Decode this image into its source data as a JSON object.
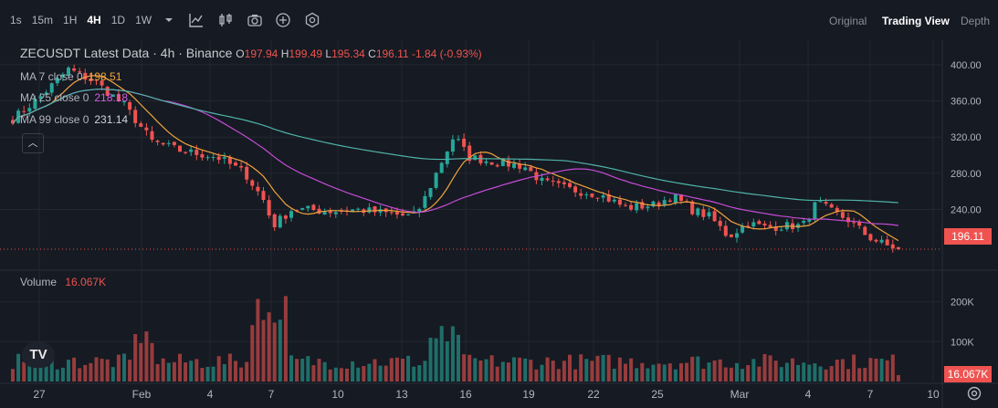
{
  "toolbar": {
    "timeframes": [
      "1s",
      "15m",
      "1H",
      "4H",
      "1D",
      "1W"
    ],
    "active_timeframe": "4H",
    "icons": [
      "chevron-down-icon",
      "indicators-icon",
      "candle-type-icon",
      "camera-icon",
      "add-icon",
      "settings-icon"
    ],
    "views": [
      "Original",
      "Trading View",
      "Depth"
    ],
    "active_view": "Trading View"
  },
  "legend": {
    "title": "ZECUSDT Latest Data · 4h · Binance",
    "open_label": "O",
    "open": "197.94",
    "high_label": "H",
    "high": "199.49",
    "low_label": "L",
    "low": "195.34",
    "close_label": "C",
    "close": "196.11",
    "change": "-1.84 (-0.93%)",
    "ma7_label": "MA 7 close 0",
    "ma7_value": "198.51",
    "ma25_label": "MA 25 close 0",
    "ma25_value": "218.18",
    "ma99_label": "MA 99 close 0",
    "ma99_value": "231.14",
    "volume_label": "Volume",
    "volume_value": "16.067K"
  },
  "price_tag": "196.11",
  "volume_tag": "16.067K",
  "logo": "TV",
  "colors": {
    "up": "#26a69a",
    "down": "#ef5350",
    "ma7": "#f0a33e",
    "ma25": "#c54bd6",
    "ma99": "#4fb3a9",
    "background": "#161a22",
    "grid": "#232731"
  },
  "chart_data": {
    "type": "candlestick",
    "symbol": "ZECUSDT",
    "interval": "4h",
    "exchange": "Binance",
    "x_ticks": [
      "27",
      "Feb",
      "4",
      "7",
      "10",
      "13",
      "16",
      "19",
      "22",
      "25",
      "Mar",
      "4",
      "7",
      "10"
    ],
    "price_ticks": [
      "400.00",
      "360.00",
      "320.00",
      "280.00",
      "240.00"
    ],
    "volume_ticks": [
      "200K",
      "100K"
    ],
    "price_range": [
      177,
      415
    ],
    "volume_range": [
      0,
      270000
    ],
    "close_path": [
      {
        "t": 0,
        "p": 340
      },
      {
        "t": 3,
        "p": 365
      },
      {
        "t": 6,
        "p": 395
      },
      {
        "t": 9,
        "p": 380
      },
      {
        "t": 12,
        "p": 355
      },
      {
        "t": 15,
        "p": 315
      },
      {
        "t": 18,
        "p": 305
      },
      {
        "t": 22,
        "p": 298
      },
      {
        "t": 25,
        "p": 280
      },
      {
        "t": 27,
        "p": 250
      },
      {
        "t": 28,
        "p": 222
      },
      {
        "t": 30,
        "p": 240
      },
      {
        "t": 31.5,
        "p": 240
      },
      {
        "t": 34,
        "p": 238
      },
      {
        "t": 37,
        "p": 240
      },
      {
        "t": 40,
        "p": 236
      },
      {
        "t": 43,
        "p": 232
      },
      {
        "t": 44,
        "p": 245
      },
      {
        "t": 46,
        "p": 290
      },
      {
        "t": 47.5,
        "p": 322
      },
      {
        "t": 49,
        "p": 298
      },
      {
        "t": 52,
        "p": 292
      },
      {
        "t": 55,
        "p": 288
      },
      {
        "t": 57,
        "p": 270
      },
      {
        "t": 60,
        "p": 262
      },
      {
        "t": 63,
        "p": 257
      },
      {
        "t": 66,
        "p": 242
      },
      {
        "t": 69,
        "p": 245
      },
      {
        "t": 71,
        "p": 255
      },
      {
        "t": 73,
        "p": 240
      },
      {
        "t": 75,
        "p": 232
      },
      {
        "t": 77,
        "p": 210
      },
      {
        "t": 79,
        "p": 225
      },
      {
        "t": 81,
        "p": 220
      },
      {
        "t": 83,
        "p": 222
      },
      {
        "t": 85,
        "p": 222
      },
      {
        "t": 86.5,
        "p": 248
      },
      {
        "t": 88,
        "p": 238
      },
      {
        "t": 90,
        "p": 228
      },
      {
        "t": 92,
        "p": 210
      },
      {
        "t": 94,
        "p": 200
      },
      {
        "t": 95.8,
        "p": 196
      }
    ],
    "ma": [
      {
        "name": "MA 7 close 0",
        "last": 198.51
      },
      {
        "name": "MA 25 close 0",
        "last": 218.18
      },
      {
        "name": "MA 99 close 0",
        "last": 231.14
      }
    ],
    "last_close": 196.11,
    "last_volume": "16.067K"
  }
}
